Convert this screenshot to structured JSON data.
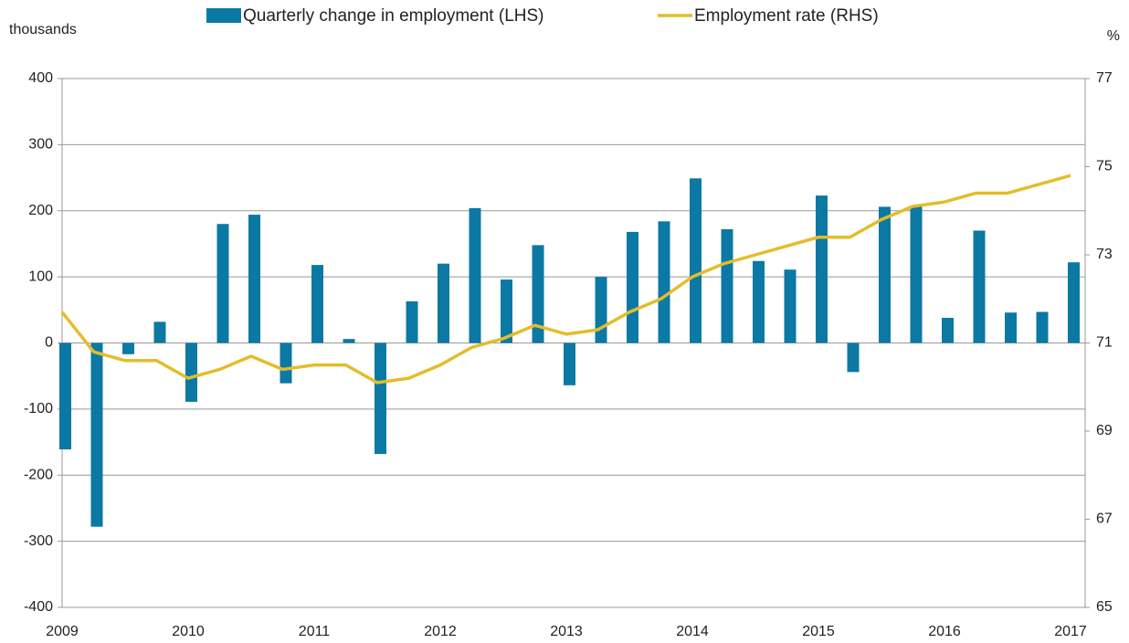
{
  "chart_data": {
    "type": "bar_line",
    "y_label": "thousands",
    "y2_label": "%",
    "categories": [
      "2009",
      null,
      null,
      null,
      "2010",
      null,
      null,
      null,
      "2011",
      null,
      null,
      null,
      "2012",
      null,
      null,
      null,
      "2013",
      null,
      null,
      null,
      "2014",
      null,
      null,
      null,
      "2015",
      null,
      null,
      null,
      "2016",
      null,
      null,
      null,
      "2017"
    ],
    "series": [
      {
        "name": "Quarterly change in employment (LHS)",
        "type": "bar",
        "color": "#0b79a3",
        "values": [
          -161,
          -278,
          -17,
          32,
          -89,
          180,
          194,
          -61,
          118,
          6,
          -168,
          63,
          120,
          204,
          96,
          148,
          -64,
          100,
          168,
          184,
          249,
          172,
          124,
          111,
          223,
          -44,
          206,
          208,
          38,
          170,
          46,
          47,
          122
        ]
      },
      {
        "name": "Employment rate (RHS)",
        "type": "line",
        "axis": "y2",
        "color": "#e3bd2b",
        "values": [
          71.7,
          70.8,
          70.6,
          70.6,
          70.2,
          70.4,
          70.7,
          70.4,
          70.5,
          70.5,
          70.1,
          70.2,
          70.5,
          70.9,
          71.1,
          71.4,
          71.2,
          71.3,
          71.7,
          72.0,
          72.5,
          72.8,
          73.0,
          73.2,
          73.4,
          73.4,
          73.8,
          74.1,
          74.2,
          74.4,
          74.4,
          74.6,
          74.8
        ]
      }
    ],
    "ylim": [
      -400,
      400
    ],
    "yticks": [
      -400,
      -300,
      -200,
      -100,
      0,
      100,
      200,
      300,
      400
    ],
    "y2lim": [
      65,
      77
    ],
    "y2ticks": [
      65,
      67,
      69,
      71,
      73,
      75,
      77
    ],
    "grid": true,
    "legend": "top"
  }
}
